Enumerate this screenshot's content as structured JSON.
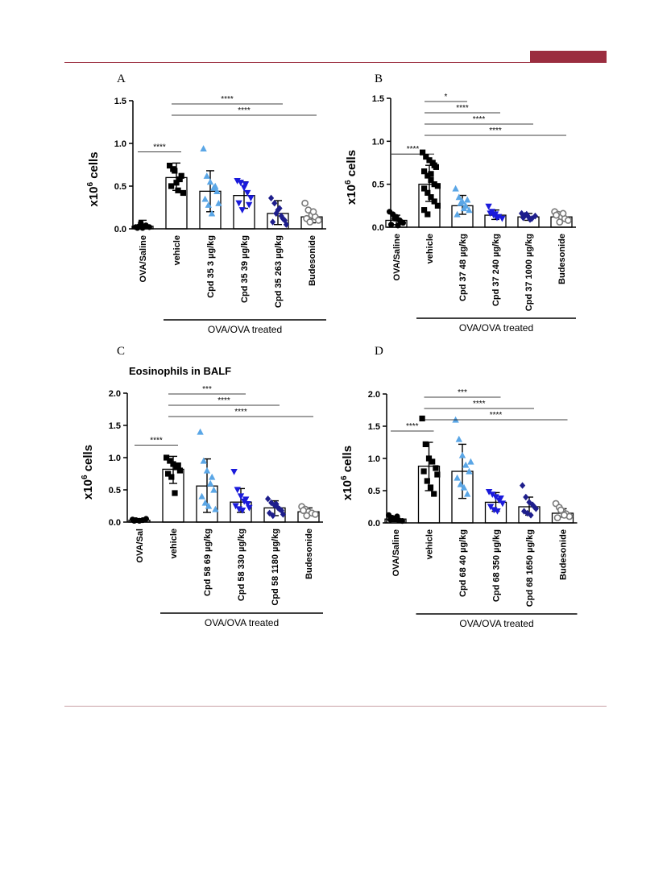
{
  "chart_data": [
    {
      "type": "bar",
      "panel_label": "A",
      "title": "",
      "ylabel": "x10^6 cells",
      "ylim": [
        0,
        1.5
      ],
      "yticks": [
        "0.0",
        "0.5",
        "1.0",
        "1.5"
      ],
      "group_label": "OVA/OVA treated",
      "categories": [
        "OVA/Saline",
        "vehicle",
        "Cpd 35 3 µg/kg",
        "Cpd 35 39 µg/kg",
        "Cpd 35 263 µg/kg",
        "Budesonide"
      ],
      "series": [
        {
          "category": "OVA/Saline",
          "color": "#000000",
          "marker": "circle",
          "mean": 0.03,
          "sd_low": 0.0,
          "sd_high": 0.1,
          "points": [
            0.02,
            0.03,
            0.01,
            0.04,
            0.02,
            0.01,
            0.07,
            0.03
          ]
        },
        {
          "category": "vehicle",
          "color": "#000000",
          "marker": "square",
          "mean": 0.6,
          "sd_low": 0.45,
          "sd_high": 0.77,
          "points": [
            0.74,
            0.7,
            0.54,
            0.58,
            0.42,
            0.5,
            0.68,
            0.45,
            0.62
          ]
        },
        {
          "category": "Cpd 35 3 µg/kg",
          "color": "#5aa6e6",
          "marker": "triangle",
          "mean": 0.44,
          "sd_low": 0.2,
          "sd_high": 0.68,
          "points": [
            0.94,
            0.62,
            0.55,
            0.48,
            0.44,
            0.35,
            0.28,
            0.18,
            0.5,
            0.3
          ]
        },
        {
          "category": "Cpd 35 39 µg/kg",
          "color": "#1a1adb",
          "marker": "triangle-down",
          "mean": 0.39,
          "sd_low": 0.24,
          "sd_high": 0.55,
          "points": [
            0.56,
            0.54,
            0.48,
            0.42,
            0.36,
            0.3,
            0.22,
            0.52,
            0.28
          ]
        },
        {
          "category": "Cpd 35 263 µg/kg",
          "color": "#1e1e8c",
          "marker": "diamond",
          "mean": 0.18,
          "sd_low": 0.05,
          "sd_high": 0.33,
          "points": [
            0.36,
            0.3,
            0.22,
            0.15,
            0.1,
            0.08,
            0.18,
            0.24,
            0.12,
            0.05
          ]
        },
        {
          "category": "Budesonide",
          "color": "#7a7a7a",
          "marker": "open-circle",
          "mean": 0.14,
          "sd_low": 0.07,
          "sd_high": 0.22,
          "points": [
            0.3,
            0.22,
            0.16,
            0.14,
            0.1,
            0.12,
            0.08,
            0.2
          ]
        }
      ],
      "significance": [
        {
          "from": "OVA/Saline",
          "to": "vehicle",
          "label": "****"
        },
        {
          "from": "vehicle",
          "to": "Cpd 35 263 µg/kg",
          "label": "****"
        },
        {
          "from": "vehicle",
          "to": "Budesonide",
          "label": "****"
        }
      ]
    },
    {
      "type": "bar",
      "panel_label": "B",
      "title": "",
      "ylabel": "x10^6 cells",
      "ylim": [
        0,
        1.5
      ],
      "yticks": [
        "0.0",
        "0.5",
        "1.0",
        "1.5"
      ],
      "group_label": "OVA/OVA treated",
      "categories": [
        "OVA/Saline",
        "vehicle",
        "Cpd 37 48 µg/kg",
        "Cpd 37 240 µg/kg",
        "Cpd 37 1000 µg/kg",
        "Budesonide"
      ],
      "series": [
        {
          "category": "OVA/Saline",
          "color": "#000000",
          "marker": "circle",
          "mean": 0.08,
          "sd_low": 0.03,
          "sd_high": 0.14,
          "points": [
            0.18,
            0.15,
            0.12,
            0.08,
            0.05,
            0.03,
            0.1,
            0.02,
            0.06
          ]
        },
        {
          "category": "vehicle",
          "color": "#000000",
          "marker": "square",
          "mean": 0.5,
          "sd_low": 0.3,
          "sd_high": 0.72,
          "points": [
            0.87,
            0.82,
            0.78,
            0.75,
            0.7,
            0.65,
            0.6,
            0.55,
            0.5,
            0.48,
            0.45,
            0.4,
            0.35,
            0.3,
            0.25,
            0.2,
            0.15,
            0.62,
            0.72
          ]
        },
        {
          "category": "Cpd 37 48 µg/kg",
          "color": "#5aa6e6",
          "marker": "triangle",
          "mean": 0.25,
          "sd_low": 0.15,
          "sd_high": 0.37,
          "points": [
            0.45,
            0.35,
            0.3,
            0.25,
            0.2,
            0.15,
            0.28,
            0.22,
            0.32
          ]
        },
        {
          "category": "Cpd 37 240 µg/kg",
          "color": "#1a1adb",
          "marker": "triangle-down",
          "mean": 0.14,
          "sd_low": 0.09,
          "sd_high": 0.2,
          "points": [
            0.24,
            0.18,
            0.15,
            0.12,
            0.1,
            0.16,
            0.14,
            0.11
          ]
        },
        {
          "category": "Cpd 37 1000 µg/kg",
          "color": "#1e1e8c",
          "marker": "diamond",
          "mean": 0.12,
          "sd_low": 0.08,
          "sd_high": 0.16,
          "points": [
            0.16,
            0.14,
            0.12,
            0.1,
            0.13,
            0.11,
            0.15,
            0.09
          ]
        },
        {
          "category": "Budesonide",
          "color": "#7a7a7a",
          "marker": "open-circle",
          "mean": 0.12,
          "sd_low": 0.07,
          "sd_high": 0.17,
          "points": [
            0.18,
            0.15,
            0.12,
            0.1,
            0.08,
            0.14,
            0.06,
            0.16
          ]
        }
      ],
      "significance": [
        {
          "from": "OVA/Saline",
          "to": "vehicle",
          "label": "****"
        },
        {
          "from": "vehicle",
          "to": "Cpd 37 48 µg/kg",
          "label": "*"
        },
        {
          "from": "vehicle",
          "to": "Cpd 37 240 µg/kg",
          "label": "****"
        },
        {
          "from": "vehicle",
          "to": "Cpd 37 1000 µg/kg",
          "label": "****"
        },
        {
          "from": "vehicle",
          "to": "Budesonide",
          "label": "****"
        }
      ]
    },
    {
      "type": "bar",
      "panel_label": "C",
      "title": "Eosinophils in BALF",
      "ylabel": "x10^6 cells",
      "ylim": [
        0,
        2.0
      ],
      "yticks": [
        "0.0",
        "0.5",
        "1.0",
        "1.5",
        "2.0"
      ],
      "group_label": "OVA/OVA treated",
      "categories": [
        "OVA/Sal",
        "vehicle",
        "Cpd 58 69 µg/kg",
        "Cpd 58 330 µg/kg",
        "Cpd 58 1180 µg/kg",
        "Budesonide"
      ],
      "series": [
        {
          "category": "OVA/Sal",
          "color": "#000000",
          "marker": "circle",
          "mean": 0.03,
          "sd_low": 0.01,
          "sd_high": 0.05,
          "points": [
            0.04,
            0.03,
            0.02,
            0.03,
            0.05,
            0.02
          ]
        },
        {
          "category": "vehicle",
          "color": "#000000",
          "marker": "square",
          "mean": 0.82,
          "sd_low": 0.6,
          "sd_high": 1.02,
          "points": [
            1.0,
            0.95,
            0.9,
            0.85,
            0.8,
            0.75,
            0.7,
            0.45,
            0.88
          ]
        },
        {
          "category": "Cpd 58 69 µg/kg",
          "color": "#5aa6e6",
          "marker": "triangle",
          "mean": 0.56,
          "sd_low": 0.15,
          "sd_high": 0.98,
          "points": [
            1.4,
            0.95,
            0.8,
            0.6,
            0.5,
            0.4,
            0.3,
            0.25,
            0.7,
            0.2
          ]
        },
        {
          "category": "Cpd 58 330 µg/kg",
          "color": "#1a1adb",
          "marker": "triangle-down",
          "mean": 0.31,
          "sd_low": 0.15,
          "sd_high": 0.52,
          "points": [
            0.78,
            0.5,
            0.4,
            0.32,
            0.28,
            0.25,
            0.2,
            0.18,
            0.35,
            0.22
          ]
        },
        {
          "category": "Cpd 58 1180 µg/kg",
          "color": "#1e1e8c",
          "marker": "diamond",
          "mean": 0.22,
          "sd_low": 0.1,
          "sd_high": 0.33,
          "points": [
            0.36,
            0.3,
            0.26,
            0.22,
            0.18,
            0.14,
            0.1,
            0.28,
            0.2,
            0.12
          ]
        },
        {
          "category": "Budesonide",
          "color": "#7a7a7a",
          "marker": "open-circle",
          "mean": 0.16,
          "sd_low": 0.11,
          "sd_high": 0.22,
          "points": [
            0.24,
            0.2,
            0.16,
            0.14,
            0.12,
            0.18,
            0.1
          ]
        }
      ],
      "significance": [
        {
          "from": "OVA/Sal",
          "to": "vehicle",
          "label": "****"
        },
        {
          "from": "vehicle",
          "to": "Cpd 58 330 µg/kg",
          "label": "***"
        },
        {
          "from": "vehicle",
          "to": "Cpd 58 1180 µg/kg",
          "label": "****"
        },
        {
          "from": "vehicle",
          "to": "Budesonide",
          "label": "****"
        }
      ]
    },
    {
      "type": "bar",
      "panel_label": "D",
      "title": "",
      "ylabel": "x10^6 cells",
      "ylim": [
        0,
        2.0
      ],
      "yticks": [
        "0.0",
        "0.5",
        "1.0",
        "1.5",
        "2.0"
      ],
      "group_label": "OVA/OVA treated",
      "categories": [
        "OVA/Saline",
        "vehicle",
        "Cpd 68 40 µg/kg",
        "Cpd 68 350 µg/kg",
        "Cpd 68 1650 µg/kg",
        "Budesonide"
      ],
      "series": [
        {
          "category": "OVA/Saline",
          "color": "#000000",
          "marker": "circle",
          "mean": 0.06,
          "sd_low": 0.02,
          "sd_high": 0.1,
          "points": [
            0.12,
            0.08,
            0.06,
            0.04,
            0.03,
            0.05,
            0.07,
            0.1
          ]
        },
        {
          "category": "vehicle",
          "color": "#000000",
          "marker": "square",
          "mean": 0.88,
          "sd_low": 0.5,
          "sd_high": 1.25,
          "points": [
            1.62,
            1.22,
            1.0,
            0.95,
            0.85,
            0.8,
            0.65,
            0.55,
            0.45,
            0.75
          ]
        },
        {
          "category": "Cpd 68 40 µg/kg",
          "color": "#5aa6e6",
          "marker": "triangle",
          "mean": 0.8,
          "sd_low": 0.38,
          "sd_high": 1.22,
          "points": [
            1.6,
            1.3,
            1.05,
            0.9,
            0.8,
            0.7,
            0.6,
            0.55,
            0.45,
            0.95
          ]
        },
        {
          "category": "Cpd 68 350 µg/kg",
          "color": "#1a1adb",
          "marker": "triangle-down",
          "mean": 0.32,
          "sd_low": 0.18,
          "sd_high": 0.47,
          "points": [
            0.48,
            0.44,
            0.4,
            0.35,
            0.3,
            0.25,
            0.2,
            0.18,
            0.38
          ]
        },
        {
          "category": "Cpd 68 1650 µg/kg",
          "color": "#1e1e8c",
          "marker": "diamond",
          "mean": 0.25,
          "sd_low": 0.12,
          "sd_high": 0.4,
          "points": [
            0.58,
            0.4,
            0.32,
            0.28,
            0.22,
            0.18,
            0.15,
            0.12,
            0.25
          ]
        },
        {
          "category": "Budesonide",
          "color": "#7a7a7a",
          "marker": "open-circle",
          "mean": 0.15,
          "sd_low": 0.09,
          "sd_high": 0.22,
          "points": [
            0.3,
            0.24,
            0.18,
            0.14,
            0.1,
            0.08,
            0.2,
            0.12
          ]
        }
      ],
      "significance": [
        {
          "from": "OVA/Saline",
          "to": "vehicle",
          "label": "****"
        },
        {
          "from": "vehicle",
          "to": "Cpd 68 350 µg/kg",
          "label": "***"
        },
        {
          "from": "vehicle",
          "to": "Cpd 68 1650 µg/kg",
          "label": "****"
        },
        {
          "from": "vehicle",
          "to": "Budesonide",
          "label": "****"
        }
      ]
    }
  ]
}
